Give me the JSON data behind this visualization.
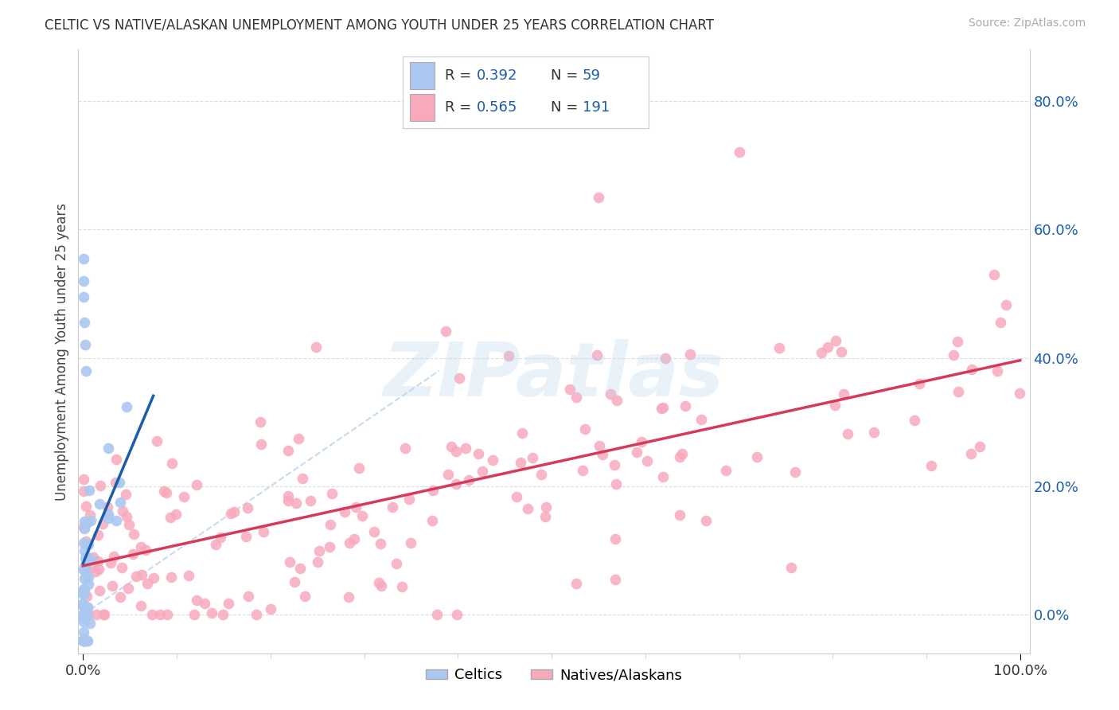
{
  "title": "CELTIC VS NATIVE/ALASKAN UNEMPLOYMENT AMONG YOUTH UNDER 25 YEARS CORRELATION CHART",
  "source": "Source: ZipAtlas.com",
  "ylabel": "Unemployment Among Youth under 25 years",
  "celtics_R": 0.392,
  "celtics_N": 59,
  "natives_R": 0.565,
  "natives_N": 191,
  "celtics_color": "#aac8f0",
  "celtics_line_color": "#1a5dab",
  "natives_color": "#f8aabc",
  "natives_line_color": "#d63a5a",
  "ref_line_color": "#c0d8ee",
  "watermark": "ZIPatlas",
  "watermark_color": "#b8d4ee",
  "background_color": "#ffffff",
  "title_color": "#333333",
  "source_color": "#aaaaaa",
  "ylabel_color": "#444444",
  "yticklabel_color": "#1a5dab",
  "xticklabel_color": "#333333",
  "grid_color": "#dddddd",
  "spine_color": "#cccccc"
}
